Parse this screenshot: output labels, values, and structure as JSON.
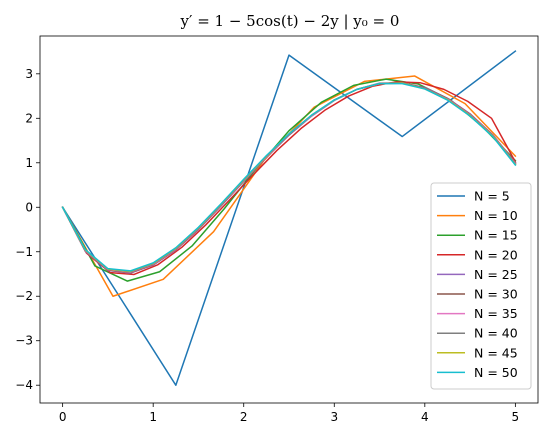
{
  "chart_data": {
    "type": "line",
    "title": "y′ = 1 − 5cos(t) − 2y | y₀ = 0",
    "xlabel": "",
    "ylabel": "",
    "xlim": [
      -0.25,
      5.25
    ],
    "ylim": [
      -4.4,
      3.85
    ],
    "xticks": [
      0,
      1,
      2,
      3,
      4,
      5
    ],
    "yticks": [
      -4,
      -3,
      -2,
      -1,
      0,
      1,
      2,
      3
    ],
    "grid": false,
    "legend_position": "lower right",
    "series": [
      {
        "name": "N = 5",
        "color": "#1f77b4",
        "x": [
          0,
          1.25,
          2.5,
          3.75,
          5
        ],
        "y": [
          0,
          -4.0,
          3.42,
          1.59,
          3.51
        ]
      },
      {
        "name": "N = 10",
        "color": "#ff7f0e",
        "x": [
          0,
          0.556,
          1.111,
          1.667,
          2.222,
          2.778,
          3.333,
          3.889,
          4.444,
          5
        ],
        "y": [
          0,
          -2.0,
          -1.62,
          -0.55,
          1.05,
          2.25,
          2.83,
          2.95,
          2.33,
          1.15
        ]
      },
      {
        "name": "N = 15",
        "color": "#2ca02c",
        "x": [
          0,
          0.357,
          0.714,
          1.071,
          1.429,
          1.786,
          2.143,
          2.5,
          2.857,
          3.214,
          3.571,
          3.929,
          4.286,
          4.643,
          5
        ],
        "y": [
          0,
          -1.32,
          -1.66,
          -1.45,
          -0.87,
          -0.03,
          0.88,
          1.72,
          2.36,
          2.74,
          2.88,
          2.77,
          2.41,
          1.8,
          1.05
        ]
      },
      {
        "name": "N = 20",
        "color": "#d62728",
        "x": [
          0,
          0.263,
          0.526,
          0.789,
          1.053,
          1.316,
          1.579,
          1.842,
          2.105,
          2.368,
          2.632,
          2.895,
          3.158,
          3.421,
          3.684,
          3.947,
          4.211,
          4.474,
          4.737,
          5
        ],
        "y": [
          0,
          -1.03,
          -1.47,
          -1.51,
          -1.29,
          -0.9,
          -0.4,
          0.16,
          0.73,
          1.28,
          1.77,
          2.18,
          2.5,
          2.72,
          2.82,
          2.8,
          2.65,
          2.38,
          2.0,
          1.02
        ]
      },
      {
        "name": "N = 25",
        "color": "#9467bd",
        "x": [
          0,
          0.25,
          0.5,
          0.75,
          1.0,
          1.25,
          1.5,
          1.75,
          2.0,
          2.25,
          2.5,
          2.75,
          3.0,
          3.25,
          3.5,
          3.75,
          4.0,
          4.25,
          4.5,
          4.75,
          5
        ],
        "y": [
          0,
          -0.99,
          -1.42,
          -1.48,
          -1.3,
          -0.96,
          -0.5,
          0.03,
          0.58,
          1.12,
          1.62,
          2.05,
          2.4,
          2.65,
          2.79,
          2.8,
          2.69,
          2.45,
          2.1,
          1.63,
          1.0
        ]
      },
      {
        "name": "N = 30",
        "color": "#8c564b",
        "x": [
          0,
          0.25,
          0.5,
          0.75,
          1.0,
          1.25,
          1.5,
          1.75,
          2.0,
          2.25,
          2.5,
          2.75,
          3.0,
          3.25,
          3.5,
          3.75,
          4.0,
          4.25,
          4.5,
          4.75,
          5
        ],
        "y": [
          0,
          -0.98,
          -1.41,
          -1.47,
          -1.29,
          -0.95,
          -0.49,
          0.04,
          0.59,
          1.13,
          1.63,
          2.06,
          2.41,
          2.65,
          2.78,
          2.8,
          2.68,
          2.44,
          2.09,
          1.62,
          0.99
        ]
      },
      {
        "name": "N = 35",
        "color": "#e377c2",
        "x": [
          0,
          0.25,
          0.5,
          0.75,
          1.0,
          1.25,
          1.5,
          1.75,
          2.0,
          2.25,
          2.5,
          2.75,
          3.0,
          3.25,
          3.5,
          3.75,
          4.0,
          4.25,
          4.5,
          4.75,
          5
        ],
        "y": [
          0,
          -0.97,
          -1.4,
          -1.46,
          -1.28,
          -0.94,
          -0.48,
          0.05,
          0.6,
          1.14,
          1.64,
          2.06,
          2.41,
          2.65,
          2.78,
          2.79,
          2.67,
          2.43,
          2.08,
          1.61,
          0.98
        ]
      },
      {
        "name": "N = 40",
        "color": "#7f7f7f",
        "x": [
          0,
          0.25,
          0.5,
          0.75,
          1.0,
          1.25,
          1.5,
          1.75,
          2.0,
          2.25,
          2.5,
          2.75,
          3.0,
          3.25,
          3.5,
          3.75,
          4.0,
          4.25,
          4.5,
          4.75,
          5
        ],
        "y": [
          0,
          -0.96,
          -1.39,
          -1.45,
          -1.27,
          -0.93,
          -0.47,
          0.06,
          0.61,
          1.15,
          1.64,
          2.07,
          2.41,
          2.65,
          2.78,
          2.79,
          2.67,
          2.42,
          2.07,
          1.6,
          0.97
        ]
      },
      {
        "name": "N = 45",
        "color": "#bcbd22",
        "x": [
          0,
          0.25,
          0.5,
          0.75,
          1.0,
          1.25,
          1.5,
          1.75,
          2.0,
          2.25,
          2.5,
          2.75,
          3.0,
          3.25,
          3.5,
          3.75,
          4.0,
          4.25,
          4.5,
          4.75,
          5
        ],
        "y": [
          0,
          -0.96,
          -1.39,
          -1.44,
          -1.26,
          -0.92,
          -0.46,
          0.07,
          0.62,
          1.15,
          1.65,
          2.07,
          2.41,
          2.65,
          2.78,
          2.79,
          2.66,
          2.42,
          2.06,
          1.6,
          0.96
        ]
      },
      {
        "name": "N = 50",
        "color": "#17becf",
        "x": [
          0,
          0.25,
          0.5,
          0.75,
          1.0,
          1.25,
          1.5,
          1.75,
          2.0,
          2.25,
          2.5,
          2.75,
          3.0,
          3.25,
          3.5,
          3.75,
          4.0,
          4.25,
          4.5,
          4.75,
          5
        ],
        "y": [
          0,
          -0.95,
          -1.38,
          -1.43,
          -1.25,
          -0.91,
          -0.45,
          0.08,
          0.63,
          1.16,
          1.65,
          2.07,
          2.41,
          2.65,
          2.78,
          2.78,
          2.66,
          2.41,
          2.05,
          1.59,
          0.95
        ]
      }
    ]
  }
}
